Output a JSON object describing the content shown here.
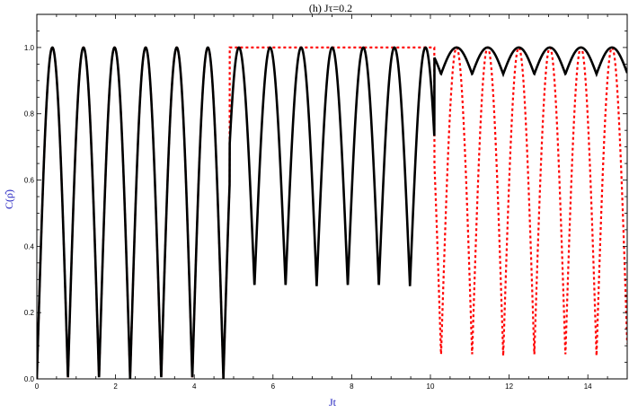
{
  "chart_data": {
    "type": "line",
    "title": "(h) Jτ=0.2",
    "xlabel": "Jt",
    "ylabel": "C(ρ̂)",
    "xlim": [
      0,
      15
    ],
    "ylim": [
      0,
      1.1
    ],
    "x_ticks": [
      "0",
      "2",
      "4",
      "6",
      "8",
      "10",
      "12",
      "14"
    ],
    "y_ticks": [
      "0.0",
      "0.2",
      "0.4",
      "0.6",
      "0.8",
      "1.0"
    ],
    "grid": false,
    "label_color": "#1f1fbf",
    "series": [
      {
        "style": "solid",
        "color": "#000000",
        "regimes": [
          {
            "t_start": 0.0,
            "t_end": 4.9,
            "period": 0.79,
            "min": 0.0,
            "max": 1.0
          },
          {
            "t_start": 4.9,
            "t_end": 10.1,
            "period": 0.79,
            "min": 0.28,
            "max": 1.0
          },
          {
            "t_start": 10.1,
            "t_end": 15.0,
            "period": 0.79,
            "min": 0.92,
            "max": 1.0
          }
        ]
      },
      {
        "style": "dotted",
        "color": "#ff0000",
        "regimes": [
          {
            "t_start": 0.0,
            "t_end": 4.9,
            "period": 0.79,
            "min": 0.0,
            "max": 1.0
          },
          {
            "t_start": 4.9,
            "t_end": 10.1,
            "period": 0,
            "min": 1.0,
            "max": 1.0
          },
          {
            "t_start": 10.1,
            "t_end": 15.0,
            "period": 0.79,
            "min": 0.07,
            "max": 1.0
          }
        ]
      }
    ]
  }
}
